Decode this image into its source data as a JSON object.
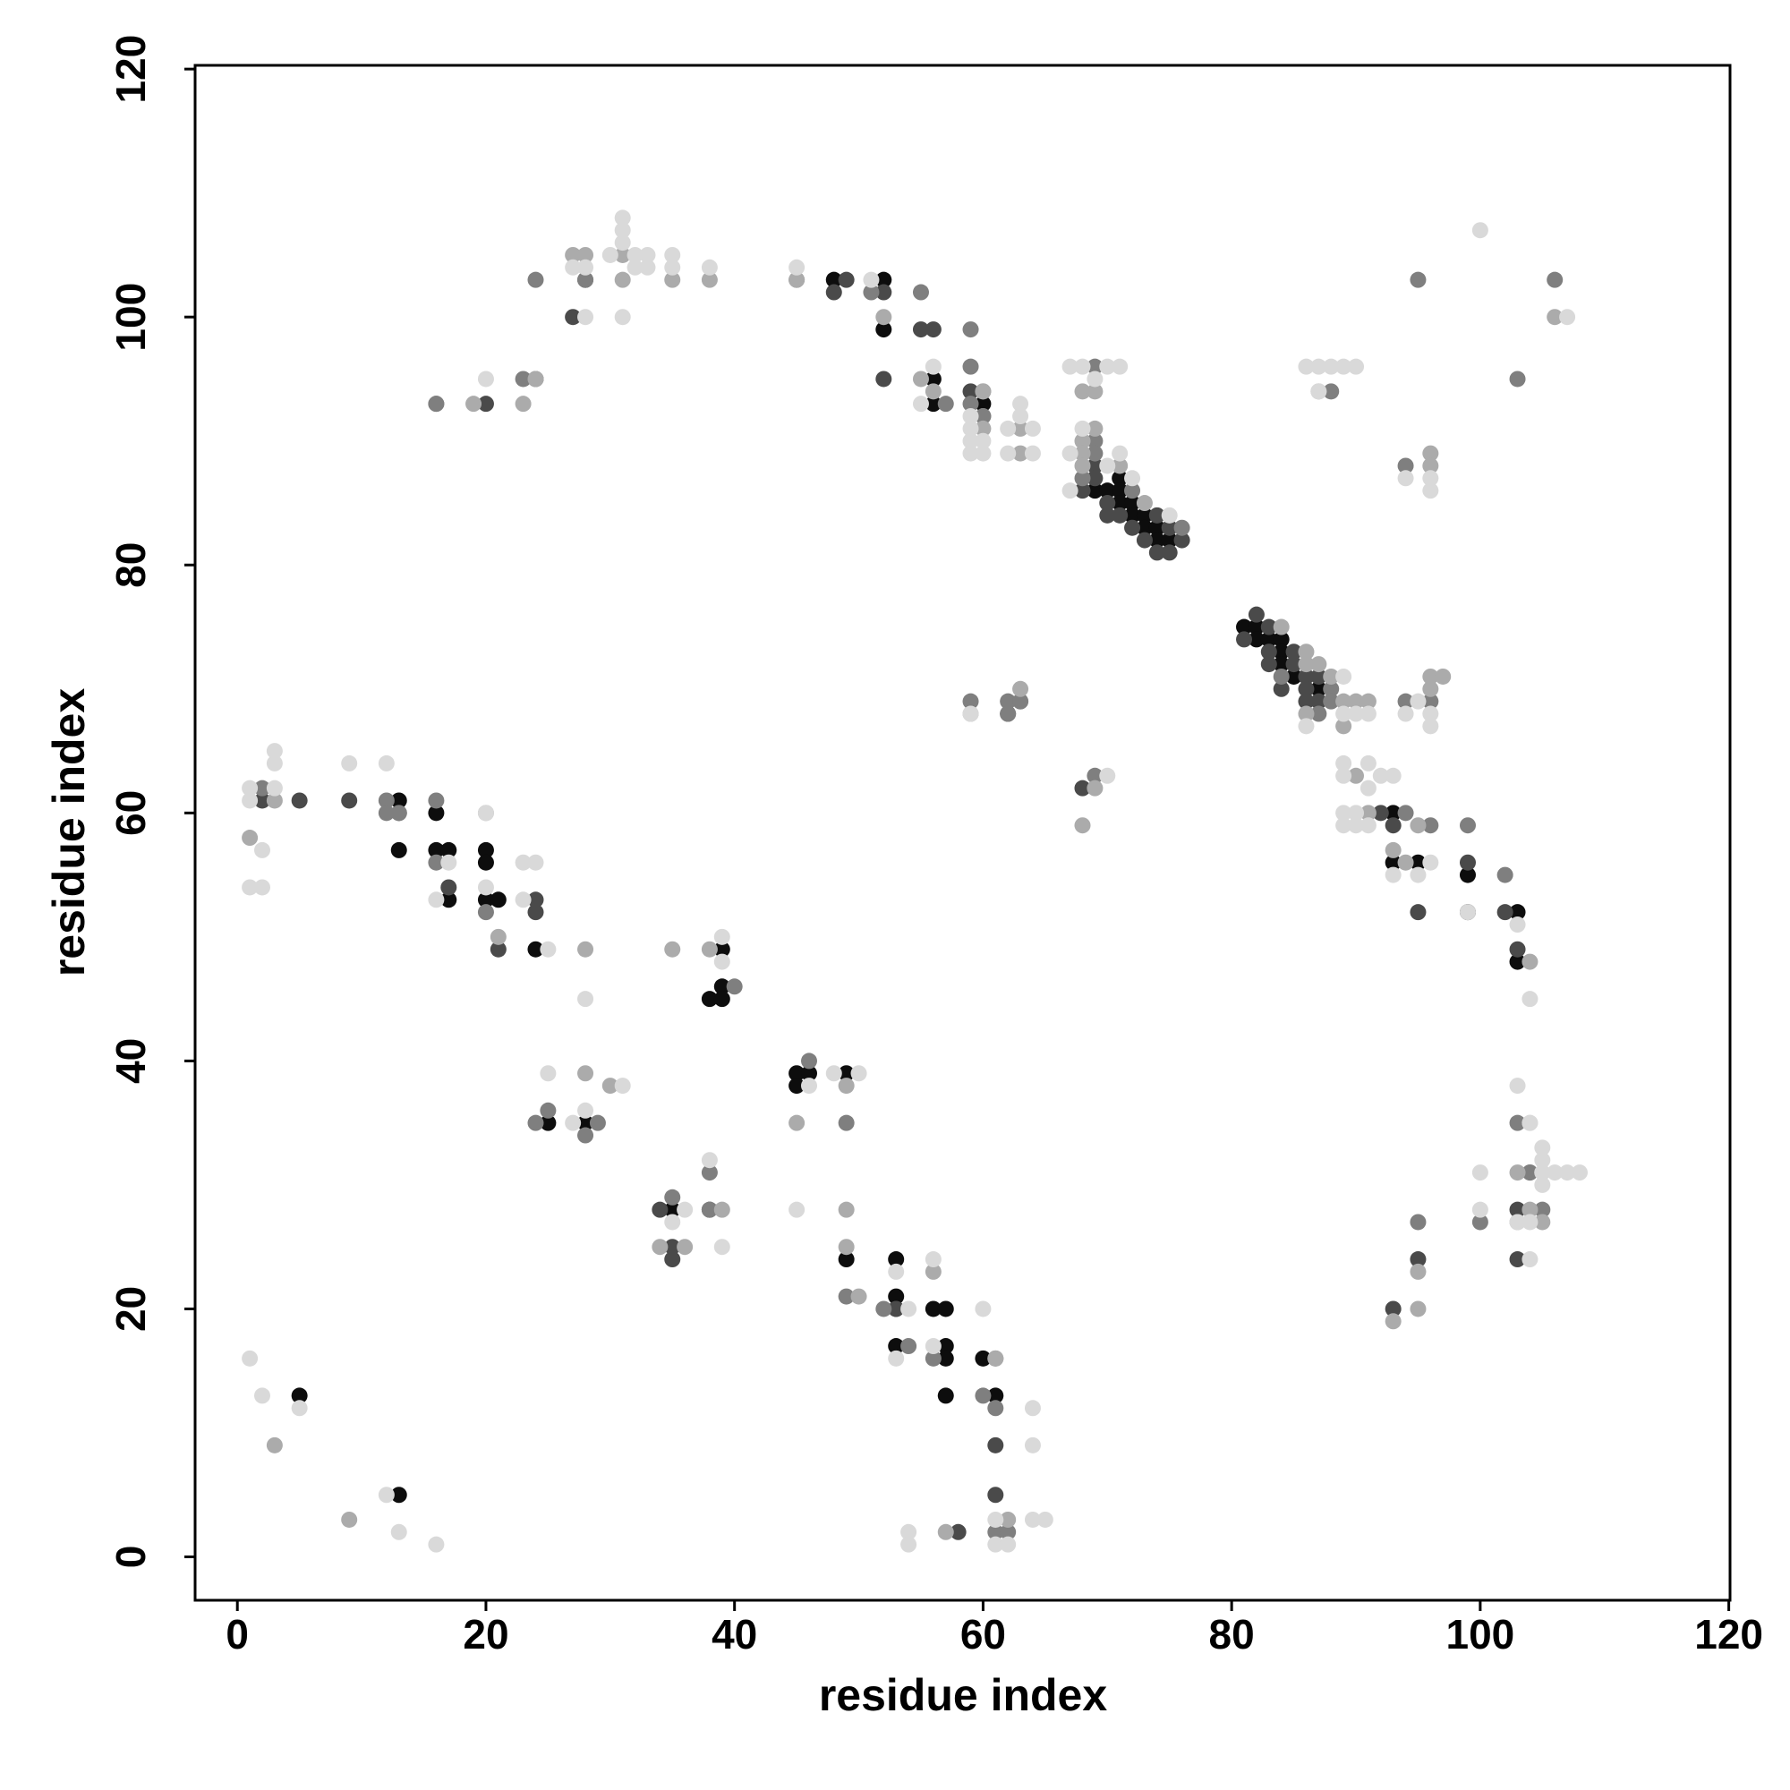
{
  "chart_data": {
    "type": "scatter",
    "x_label": "residue index",
    "y_label": "residue index",
    "xlim": [
      -3.4,
      120.1
    ],
    "ylim": [
      -3.5,
      120.3
    ],
    "xticks": [
      0,
      20,
      40,
      60,
      80,
      100,
      120
    ],
    "yticks": [
      0,
      20,
      40,
      60,
      80,
      100,
      120
    ],
    "series": [
      {
        "color": "#0d0d0d",
        "x": [
          5,
          13,
          13,
          13,
          16,
          16,
          17,
          17,
          20,
          20,
          20,
          21,
          24,
          39,
          39,
          38,
          39,
          25,
          28,
          45,
          45,
          46,
          49,
          35,
          49,
          53,
          53,
          53,
          56,
          57,
          57,
          53,
          57,
          60,
          57,
          61,
          48,
          52,
          52,
          56,
          56,
          60,
          69,
          70,
          71,
          71,
          71,
          72,
          72,
          73,
          73,
          74,
          74,
          75,
          81,
          82,
          82,
          83,
          84,
          84,
          84,
          85,
          87,
          93,
          93,
          95,
          99,
          99,
          103,
          103
        ],
        "values": [
          13,
          5,
          61,
          57,
          60,
          57,
          57,
          53,
          57,
          56,
          53,
          53,
          49,
          49,
          46,
          45,
          45,
          35,
          35,
          39,
          38,
          39,
          39,
          28,
          24,
          24,
          21,
          20,
          20,
          20,
          17,
          17,
          16,
          16,
          13,
          13,
          103,
          103,
          99,
          95,
          93,
          93,
          86,
          86,
          87,
          86,
          85,
          85,
          84,
          84,
          83,
          83,
          82,
          82,
          75,
          75,
          74,
          74,
          74,
          73,
          72,
          71,
          70,
          60,
          56,
          56,
          55,
          52,
          52,
          48
        ]
      },
      {
        "color": "#4a4a4a",
        "x": [
          2,
          5,
          9,
          13,
          17,
          21,
          24,
          24,
          20,
          27,
          28,
          48,
          49,
          52,
          52,
          55,
          56,
          59,
          68,
          69,
          69,
          70,
          70,
          71,
          72,
          73,
          74,
          74,
          75,
          75,
          76,
          81,
          82,
          83,
          83,
          83,
          84,
          85,
          85,
          86,
          86,
          86,
          87,
          87,
          92,
          93,
          95,
          99,
          102,
          103,
          62,
          68,
          34,
          35,
          35,
          38,
          58,
          61,
          61,
          93,
          95,
          103,
          103,
          53
        ],
        "values": [
          61,
          61,
          61,
          60,
          54,
          49,
          53,
          52,
          93,
          100,
          103,
          102,
          103,
          102,
          95,
          99,
          99,
          94,
          86,
          88,
          87,
          85,
          84,
          84,
          83,
          82,
          84,
          81,
          83,
          81,
          82,
          74,
          76,
          75,
          73,
          72,
          70,
          73,
          72,
          71,
          70,
          69,
          71,
          69,
          60,
          59,
          52,
          56,
          52,
          49,
          68,
          62,
          28,
          25,
          24,
          28,
          2,
          9,
          5,
          20,
          24,
          28,
          24,
          20
        ]
      },
      {
        "color": "#7f7f7f",
        "x": [
          2,
          12,
          12,
          13,
          16,
          16,
          20,
          24,
          16,
          23,
          24,
          28,
          59,
          60,
          38,
          40,
          24,
          25,
          29,
          28,
          46,
          49,
          35,
          38,
          49,
          52,
          54,
          56,
          61,
          60,
          61,
          61,
          62,
          16,
          24,
          28,
          45,
          51,
          55,
          57,
          59,
          59,
          60,
          60,
          63,
          69,
          69,
          69,
          68,
          72,
          76,
          84,
          87,
          88,
          88,
          94,
          96,
          62,
          63,
          69,
          59,
          62,
          88,
          94,
          95,
          103,
          106,
          94,
          96,
          99,
          102,
          104,
          95,
          100,
          103,
          105,
          104
        ],
        "values": [
          62,
          61,
          60,
          60,
          61,
          56,
          52,
          95,
          93,
          95,
          103,
          103,
          99,
          92,
          31,
          46,
          35,
          36,
          35,
          34,
          40,
          35,
          29,
          28,
          21,
          20,
          17,
          16,
          16,
          13,
          12,
          2,
          2,
          93,
          95,
          103,
          103,
          102,
          102,
          93,
          96,
          93,
          94,
          92,
          69,
          96,
          90,
          89,
          87,
          86,
          83,
          71,
          68,
          70,
          69,
          69,
          69,
          69,
          69,
          63,
          69,
          68,
          94,
          88,
          103,
          95,
          103,
          60,
          59,
          59,
          55,
          31,
          27,
          27,
          35,
          28,
          31
        ]
      },
      {
        "color": "#ababab",
        "x": [
          3,
          3,
          9,
          1,
          21,
          28,
          28,
          30,
          24,
          34,
          36,
          39,
          45,
          49,
          49,
          49,
          50,
          56,
          57,
          61,
          62,
          19,
          23,
          27,
          28,
          31,
          31,
          35,
          38,
          45,
          52,
          55,
          56,
          60,
          60,
          63,
          63,
          68,
          68,
          68,
          68,
          69,
          69,
          71,
          73,
          84,
          86,
          86,
          86,
          87,
          88,
          89,
          89,
          90,
          91,
          96,
          96,
          97,
          59,
          63,
          69,
          68,
          87,
          96,
          96,
          93,
          95,
          95,
          104,
          103,
          105,
          20,
          95,
          90,
          91,
          94,
          93,
          35,
          38,
          106,
          104,
          103
        ],
        "values": [
          61,
          9,
          3,
          58,
          50,
          49,
          39,
          38,
          95,
          25,
          25,
          28,
          35,
          28,
          25,
          38,
          21,
          23,
          2,
          16,
          3,
          93,
          93,
          105,
          105,
          105,
          103,
          103,
          103,
          103,
          100,
          95,
          94,
          94,
          91,
          91,
          89,
          94,
          90,
          89,
          88,
          91,
          94,
          88,
          85,
          75,
          73,
          72,
          68,
          72,
          71,
          69,
          67,
          69,
          69,
          71,
          70,
          71,
          68,
          70,
          62,
          59,
          94,
          89,
          88,
          19,
          23,
          20,
          28,
          27,
          27,
          60,
          59,
          63,
          60,
          56,
          57,
          49,
          49,
          100,
          48,
          31
        ]
      },
      {
        "color": "#d9d9d9",
        "x": [
          1,
          2,
          5,
          12,
          13,
          16,
          1,
          1,
          3,
          3,
          2,
          1,
          2,
          3,
          9,
          12,
          17,
          16,
          20,
          20,
          23,
          23,
          24,
          25,
          28,
          25,
          27,
          28,
          31,
          48,
          39,
          39,
          46,
          50,
          36,
          35,
          38,
          39,
          45,
          53,
          54,
          56,
          53,
          56,
          60,
          64,
          64,
          61,
          64,
          65,
          61,
          62,
          54,
          54,
          20,
          27,
          28,
          28,
          30,
          31,
          31,
          31,
          31,
          32,
          32,
          33,
          33,
          35,
          35,
          38,
          45,
          51,
          56,
          55,
          59,
          59,
          59,
          59,
          60,
          60,
          62,
          64,
          62,
          64,
          63,
          63,
          67,
          68,
          69,
          70,
          71,
          67,
          67,
          68,
          70,
          71,
          72,
          75,
          86,
          89,
          89,
          90,
          91,
          94,
          95,
          96,
          96,
          59,
          70,
          86,
          87,
          88,
          89,
          90,
          87,
          94,
          96,
          96,
          100,
          107,
          89,
          89,
          91,
          91,
          92,
          93,
          89,
          89,
          90,
          90,
          91,
          93,
          95,
          96,
          99,
          103,
          104,
          103,
          100,
          100,
          104,
          104,
          105,
          105,
          105,
          105,
          106,
          107,
          108,
          105,
          104,
          103,
          104
        ],
        "values": [
          16,
          13,
          12,
          5,
          2,
          1,
          62,
          61,
          62,
          65,
          57,
          54,
          54,
          64,
          64,
          64,
          56,
          53,
          60,
          54,
          56,
          53,
          56,
          49,
          45,
          39,
          35,
          36,
          38,
          39,
          50,
          48,
          38,
          39,
          28,
          27,
          32,
          25,
          28,
          23,
          20,
          24,
          16,
          17,
          20,
          12,
          9,
          3,
          3,
          3,
          1,
          1,
          2,
          1,
          95,
          104,
          104,
          100,
          105,
          108,
          107,
          106,
          100,
          105,
          104,
          105,
          104,
          105,
          104,
          104,
          104,
          103,
          96,
          93,
          92,
          91,
          90,
          89,
          90,
          89,
          91,
          91,
          89,
          89,
          93,
          92,
          96,
          96,
          95,
          96,
          96,
          89,
          86,
          91,
          88,
          89,
          87,
          84,
          67,
          68,
          71,
          68,
          68,
          68,
          69,
          68,
          67,
          68,
          63,
          96,
          96,
          96,
          96,
          96,
          94,
          87,
          87,
          86,
          107,
          100,
          64,
          63,
          64,
          62,
          63,
          63,
          60,
          59,
          60,
          59,
          59,
          55,
          55,
          56,
          52,
          51,
          45,
          38,
          31,
          28,
          35,
          35,
          33,
          32,
          31,
          31,
          31,
          31,
          31,
          30,
          27,
          27,
          24
        ]
      }
    ]
  }
}
